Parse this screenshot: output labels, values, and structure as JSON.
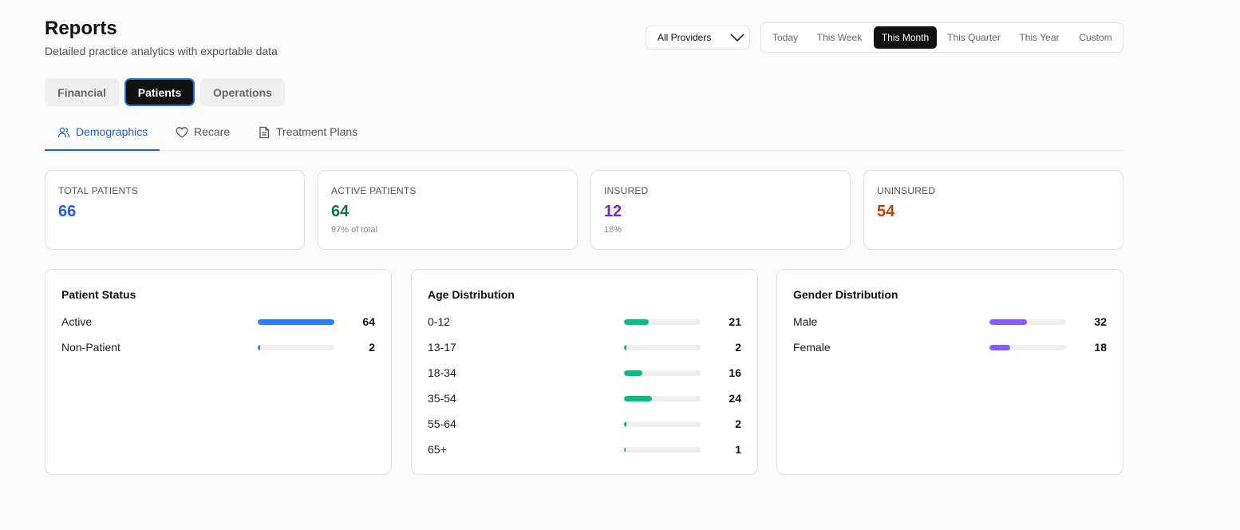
{
  "header": {
    "title": "Reports",
    "subtitle": "Detailed practice analytics with exportable data"
  },
  "provider_filter": {
    "selected": "All Providers"
  },
  "date_range": {
    "options": [
      "Today",
      "This Week",
      "This Month",
      "This Quarter",
      "This Year",
      "Custom"
    ],
    "selected": "This Month"
  },
  "main_tabs": [
    "Financial",
    "Patients",
    "Operations"
  ],
  "main_tab_selected": "Patients",
  "sub_tabs": [
    {
      "label": "Demographics",
      "icon": "users-icon"
    },
    {
      "label": "Recare",
      "icon": "heart-icon"
    },
    {
      "label": "Treatment Plans",
      "icon": "document-icon"
    }
  ],
  "sub_tab_selected": "Demographics",
  "stats": [
    {
      "label": "TOTAL PATIENTS",
      "value": "66",
      "sub": "",
      "color": "#1f5fd6"
    },
    {
      "label": "ACTIVE PATIENTS",
      "value": "64",
      "sub": "97% of total",
      "color": "#157347"
    },
    {
      "label": "INSURED",
      "value": "12",
      "sub": "18%",
      "color": "#7e22ce"
    },
    {
      "label": "UNINSURED",
      "value": "54",
      "sub": "",
      "color": "#c2410c"
    }
  ],
  "panels": [
    {
      "title": "Patient Status",
      "color": "#2f7bf0",
      "max": 64,
      "rows": [
        {
          "label": "Active",
          "value": 64
        },
        {
          "label": "Non-Patient",
          "value": 2
        }
      ]
    },
    {
      "title": "Age Distribution",
      "color": "#10b981",
      "max": 66,
      "rows": [
        {
          "label": "0-12",
          "value": 21
        },
        {
          "label": "13-17",
          "value": 2
        },
        {
          "label": "18-34",
          "value": 16
        },
        {
          "label": "35-54",
          "value": 24
        },
        {
          "label": "55-64",
          "value": 2
        },
        {
          "label": "65+",
          "value": 1
        }
      ]
    },
    {
      "title": "Gender Distribution",
      "color": "#8b5cf6",
      "max": 66,
      "rows": [
        {
          "label": "Male",
          "value": 32
        },
        {
          "label": "Female",
          "value": 18
        }
      ]
    }
  ]
}
